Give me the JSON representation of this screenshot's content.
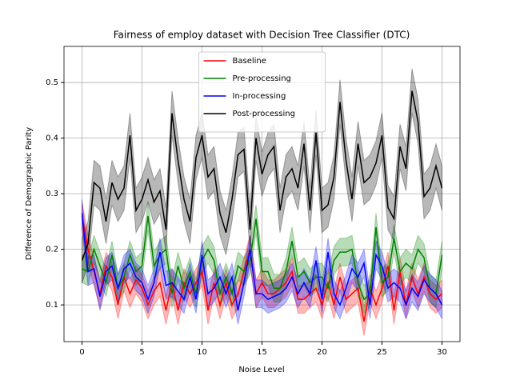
{
  "chart_data": {
    "type": "line",
    "title": "Fairness of employ dataset with Decision Tree Classifier (DTC)",
    "xlabel": "Noise Level",
    "ylabel": "Difference of Demographic Parity",
    "x": [
      0,
      0.5,
      1,
      1.5,
      2,
      2.5,
      3,
      3.5,
      4,
      4.5,
      5,
      5.5,
      6,
      6.5,
      7,
      7.5,
      8,
      8.5,
      9,
      9.5,
      10,
      10.5,
      11,
      11.5,
      12,
      12.5,
      13,
      13.5,
      14,
      14.5,
      15,
      15.5,
      16,
      16.5,
      17,
      17.5,
      18,
      18.5,
      19,
      19.5,
      20,
      20.5,
      21,
      21.5,
      22,
      22.5,
      23,
      23.5,
      24,
      24.5,
      25,
      25.5,
      26,
      26.5,
      27,
      27.5,
      28,
      28.5,
      29,
      29.5,
      30
    ],
    "series": [
      {
        "name": "Baseline",
        "color": "#ff0000",
        "error": 0.025,
        "values": [
          0.26,
          0.2,
          0.16,
          0.12,
          0.17,
          0.15,
          0.1,
          0.15,
          0.12,
          0.145,
          0.13,
          0.1,
          0.125,
          0.14,
          0.09,
          0.14,
          0.09,
          0.14,
          0.12,
          0.14,
          0.16,
          0.09,
          0.14,
          0.1,
          0.14,
          0.1,
          0.12,
          0.16,
          0.2,
          0.12,
          0.14,
          0.12,
          0.12,
          0.13,
          0.14,
          0.16,
          0.11,
          0.11,
          0.12,
          0.13,
          0.1,
          0.14,
          0.1,
          0.15,
          0.11,
          0.12,
          0.13,
          0.07,
          0.13,
          0.1,
          0.13,
          0.17,
          0.09,
          0.16,
          0.1,
          0.15,
          0.12,
          0.15,
          0.12,
          0.11,
          0.12
        ]
      },
      {
        "name": "Pre-processing",
        "color": "#008000",
        "error": 0.025,
        "values": [
          0.165,
          0.16,
          0.2,
          0.17,
          0.14,
          0.19,
          0.13,
          0.15,
          0.19,
          0.16,
          0.17,
          0.26,
          0.17,
          0.19,
          0.2,
          0.12,
          0.17,
          0.13,
          0.16,
          0.12,
          0.18,
          0.2,
          0.18,
          0.12,
          0.15,
          0.12,
          0.17,
          0.16,
          0.18,
          0.255,
          0.16,
          0.16,
          0.13,
          0.13,
          0.16,
          0.215,
          0.15,
          0.16,
          0.14,
          0.15,
          0.15,
          0.13,
          0.18,
          0.195,
          0.195,
          0.2,
          0.14,
          0.11,
          0.12,
          0.24,
          0.14,
          0.15,
          0.22,
          0.16,
          0.175,
          0.165,
          0.2,
          0.185,
          0.13,
          0.12,
          0.19
        ]
      },
      {
        "name": "In-processing",
        "color": "#0000ff",
        "error": 0.025,
        "values": [
          0.265,
          0.16,
          0.165,
          0.115,
          0.16,
          0.17,
          0.13,
          0.165,
          0.175,
          0.15,
          0.14,
          0.11,
          0.14,
          0.195,
          0.135,
          0.14,
          0.125,
          0.11,
          0.15,
          0.11,
          0.19,
          0.12,
          0.13,
          0.15,
          0.12,
          0.15,
          0.09,
          0.14,
          0.2,
          0.12,
          0.12,
          0.11,
          0.115,
          0.12,
          0.13,
          0.15,
          0.12,
          0.14,
          0.12,
          0.18,
          0.11,
          0.195,
          0.12,
          0.1,
          0.13,
          0.165,
          0.15,
          0.175,
          0.1,
          0.19,
          0.17,
          0.13,
          0.14,
          0.13,
          0.1,
          0.13,
          0.115,
          0.145,
          0.13,
          0.12,
          0.1
        ]
      },
      {
        "name": "Post-processing",
        "color": "#000000",
        "error": 0.04,
        "values": [
          0.18,
          0.21,
          0.32,
          0.31,
          0.25,
          0.32,
          0.29,
          0.31,
          0.405,
          0.27,
          0.29,
          0.325,
          0.285,
          0.305,
          0.235,
          0.445,
          0.36,
          0.29,
          0.25,
          0.365,
          0.405,
          0.33,
          0.345,
          0.265,
          0.23,
          0.29,
          0.37,
          0.38,
          0.235,
          0.4,
          0.335,
          0.37,
          0.385,
          0.27,
          0.33,
          0.345,
          0.31,
          0.39,
          0.27,
          0.41,
          0.27,
          0.28,
          0.33,
          0.465,
          0.36,
          0.29,
          0.39,
          0.32,
          0.33,
          0.355,
          0.405,
          0.275,
          0.255,
          0.385,
          0.345,
          0.485,
          0.43,
          0.295,
          0.31,
          0.35,
          0.31
        ]
      }
    ],
    "xlim": [
      -1.5,
      31.5
    ],
    "ylim": [
      0.034,
      0.565
    ],
    "xticks": [
      0,
      5,
      10,
      15,
      20,
      25,
      30
    ],
    "yticks": [
      0.1,
      0.2,
      0.3,
      0.4,
      0.5
    ],
    "grid": true,
    "legend": "upper center"
  }
}
